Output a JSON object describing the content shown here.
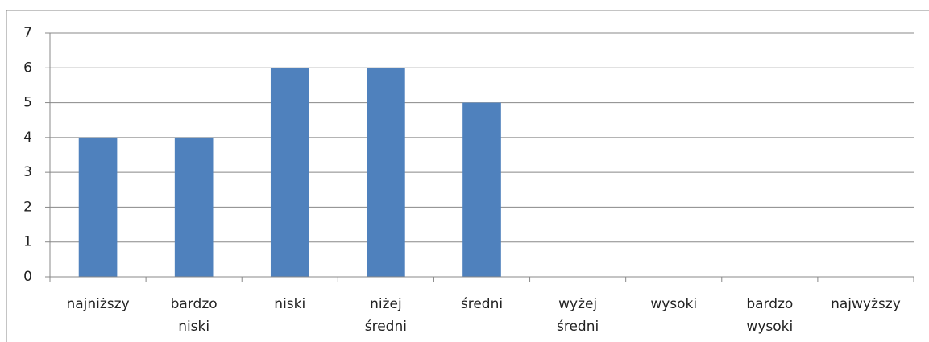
{
  "chart_data": {
    "type": "bar",
    "categories": [
      "najniższy",
      "bardzo niski",
      "niski",
      "niżej średni",
      "średni",
      "wyżej średni",
      "wysoki",
      "bardzo wysoki",
      "najwyższy"
    ],
    "values": [
      4,
      4,
      6,
      6,
      5,
      0,
      0,
      0,
      0
    ],
    "color": "#4f81bd",
    "ylim": [
      0,
      7
    ],
    "yticks": [
      0,
      1,
      2,
      3,
      4,
      5,
      6,
      7
    ],
    "grid": true
  }
}
